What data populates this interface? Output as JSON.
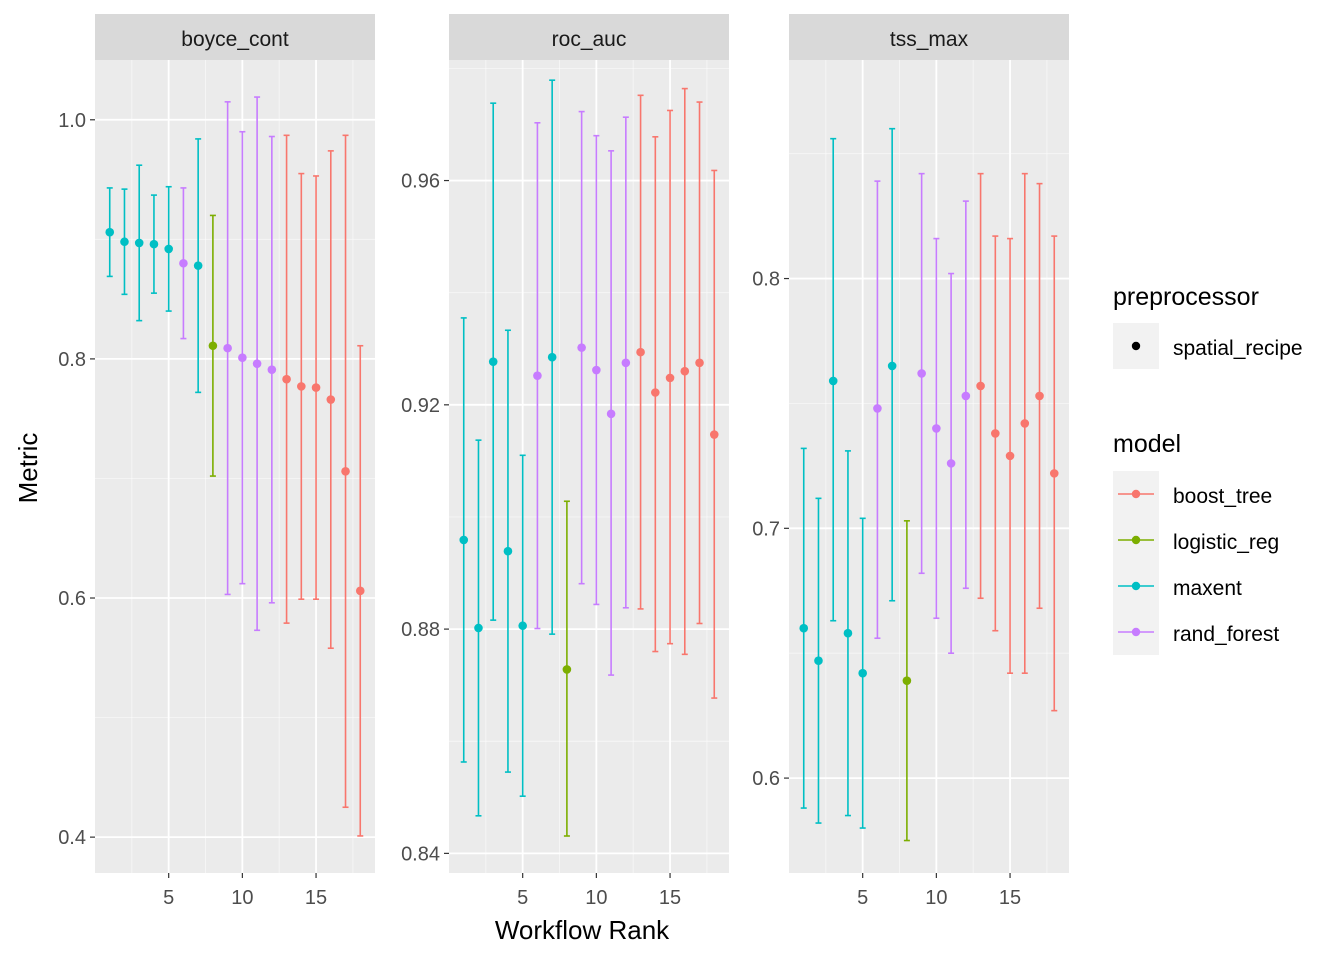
{
  "chart_data": {
    "type": "scatter",
    "subtype": "point-errorbar-faceted",
    "xlabel": "Workflow Rank",
    "ylabel": "Metric",
    "legend_position": "right",
    "grid": true,
    "legends": {
      "preprocessor": {
        "title": "preprocessor",
        "entries": [
          "spatial_recipe"
        ]
      },
      "model": {
        "title": "model",
        "entries": [
          {
            "name": "boost_tree",
            "color": "#F8766D"
          },
          {
            "name": "logistic_reg",
            "color": "#7CAE00"
          },
          {
            "name": "maxent",
            "color": "#00BFC4"
          },
          {
            "name": "rand_forest",
            "color": "#C77CFF"
          }
        ]
      }
    },
    "facets": [
      {
        "name": "boyce_cont",
        "xlim": [
          0,
          19
        ],
        "ylim": [
          0.37,
          1.05
        ],
        "xticks": [
          5,
          10,
          15
        ],
        "yticks": [
          0.4,
          0.6,
          0.8,
          1.0
        ],
        "ytick_labels": [
          "0.4",
          "0.6",
          "0.8",
          "1.0"
        ],
        "points": [
          {
            "rank": 1,
            "model": "maxent",
            "value": 0.906,
            "lower": 0.869,
            "upper": 0.943
          },
          {
            "rank": 2,
            "model": "maxent",
            "value": 0.898,
            "lower": 0.854,
            "upper": 0.942
          },
          {
            "rank": 3,
            "model": "maxent",
            "value": 0.897,
            "lower": 0.832,
            "upper": 0.962
          },
          {
            "rank": 4,
            "model": "maxent",
            "value": 0.896,
            "lower": 0.855,
            "upper": 0.937
          },
          {
            "rank": 5,
            "model": "maxent",
            "value": 0.892,
            "lower": 0.84,
            "upper": 0.944
          },
          {
            "rank": 6,
            "model": "rand_forest",
            "value": 0.88,
            "lower": 0.817,
            "upper": 0.943
          },
          {
            "rank": 7,
            "model": "maxent",
            "value": 0.878,
            "lower": 0.772,
            "upper": 0.984
          },
          {
            "rank": 8,
            "model": "logistic_reg",
            "value": 0.811,
            "lower": 0.702,
            "upper": 0.92
          },
          {
            "rank": 9,
            "model": "rand_forest",
            "value": 0.809,
            "lower": 0.603,
            "upper": 1.015
          },
          {
            "rank": 10,
            "model": "rand_forest",
            "value": 0.801,
            "lower": 0.612,
            "upper": 0.99
          },
          {
            "rank": 11,
            "model": "rand_forest",
            "value": 0.796,
            "lower": 0.573,
            "upper": 1.019
          },
          {
            "rank": 12,
            "model": "rand_forest",
            "value": 0.791,
            "lower": 0.596,
            "upper": 0.986
          },
          {
            "rank": 13,
            "model": "boost_tree",
            "value": 0.783,
            "lower": 0.579,
            "upper": 0.987
          },
          {
            "rank": 14,
            "model": "boost_tree",
            "value": 0.777,
            "lower": 0.599,
            "upper": 0.955
          },
          {
            "rank": 15,
            "model": "boost_tree",
            "value": 0.776,
            "lower": 0.599,
            "upper": 0.953
          },
          {
            "rank": 16,
            "model": "boost_tree",
            "value": 0.766,
            "lower": 0.558,
            "upper": 0.974
          },
          {
            "rank": 17,
            "model": "boost_tree",
            "value": 0.706,
            "lower": 0.425,
            "upper": 0.987
          },
          {
            "rank": 18,
            "model": "boost_tree",
            "value": 0.606,
            "lower": 0.401,
            "upper": 0.811
          }
        ]
      },
      {
        "name": "roc_auc",
        "xlim": [
          0,
          19
        ],
        "ylim": [
          0.8365,
          0.9815
        ],
        "xticks": [
          5,
          10,
          15
        ],
        "yticks": [
          0.84,
          0.88,
          0.92,
          0.96
        ],
        "ytick_labels": [
          "0.84",
          "0.88",
          "0.92",
          "0.96"
        ],
        "points": [
          {
            "rank": 1,
            "model": "maxent",
            "value": 0.8959,
            "lower": 0.8563,
            "upper": 0.9355
          },
          {
            "rank": 2,
            "model": "maxent",
            "value": 0.8802,
            "lower": 0.8467,
            "upper": 0.9137
          },
          {
            "rank": 3,
            "model": "maxent",
            "value": 0.9277,
            "lower": 0.8816,
            "upper": 0.9738
          },
          {
            "rank": 4,
            "model": "maxent",
            "value": 0.8939,
            "lower": 0.8545,
            "upper": 0.9333
          },
          {
            "rank": 5,
            "model": "maxent",
            "value": 0.8806,
            "lower": 0.8502,
            "upper": 0.911
          },
          {
            "rank": 6,
            "model": "rand_forest",
            "value": 0.9252,
            "lower": 0.8801,
            "upper": 0.9703
          },
          {
            "rank": 7,
            "model": "maxent",
            "value": 0.9285,
            "lower": 0.8791,
            "upper": 0.9779
          },
          {
            "rank": 8,
            "model": "logistic_reg",
            "value": 0.8728,
            "lower": 0.8431,
            "upper": 0.9028
          },
          {
            "rank": 9,
            "model": "rand_forest",
            "value": 0.9302,
            "lower": 0.8881,
            "upper": 0.9723
          },
          {
            "rank": 10,
            "model": "rand_forest",
            "value": 0.9262,
            "lower": 0.8844,
            "upper": 0.968
          },
          {
            "rank": 11,
            "model": "rand_forest",
            "value": 0.9184,
            "lower": 0.8718,
            "upper": 0.9653
          },
          {
            "rank": 12,
            "model": "rand_forest",
            "value": 0.9275,
            "lower": 0.8838,
            "upper": 0.9713
          },
          {
            "rank": 13,
            "model": "boost_tree",
            "value": 0.9294,
            "lower": 0.8836,
            "upper": 0.9752
          },
          {
            "rank": 14,
            "model": "boost_tree",
            "value": 0.9222,
            "lower": 0.876,
            "upper": 0.9678
          },
          {
            "rank": 15,
            "model": "boost_tree",
            "value": 0.9248,
            "lower": 0.8774,
            "upper": 0.9725
          },
          {
            "rank": 16,
            "model": "boost_tree",
            "value": 0.926,
            "lower": 0.8755,
            "upper": 0.9764
          },
          {
            "rank": 17,
            "model": "boost_tree",
            "value": 0.9275,
            "lower": 0.881,
            "upper": 0.974
          },
          {
            "rank": 18,
            "model": "boost_tree",
            "value": 0.9147,
            "lower": 0.8677,
            "upper": 0.9618
          }
        ]
      },
      {
        "name": "tss_max",
        "xlim": [
          0,
          19
        ],
        "ylim": [
          0.562,
          0.8875
        ],
        "xticks": [
          5,
          10,
          15
        ],
        "yticks": [
          0.6,
          0.7,
          0.8
        ],
        "ytick_labels": [
          "0.6",
          "0.7",
          "0.8"
        ],
        "points": [
          {
            "rank": 1,
            "model": "maxent",
            "value": 0.66,
            "lower": 0.588,
            "upper": 0.732
          },
          {
            "rank": 2,
            "model": "maxent",
            "value": 0.647,
            "lower": 0.582,
            "upper": 0.712
          },
          {
            "rank": 3,
            "model": "maxent",
            "value": 0.759,
            "lower": 0.663,
            "upper": 0.856
          },
          {
            "rank": 4,
            "model": "maxent",
            "value": 0.658,
            "lower": 0.585,
            "upper": 0.731
          },
          {
            "rank": 5,
            "model": "maxent",
            "value": 0.642,
            "lower": 0.58,
            "upper": 0.704
          },
          {
            "rank": 6,
            "model": "rand_forest",
            "value": 0.748,
            "lower": 0.656,
            "upper": 0.839
          },
          {
            "rank": 7,
            "model": "maxent",
            "value": 0.765,
            "lower": 0.671,
            "upper": 0.86
          },
          {
            "rank": 8,
            "model": "logistic_reg",
            "value": 0.639,
            "lower": 0.575,
            "upper": 0.703
          },
          {
            "rank": 9,
            "model": "rand_forest",
            "value": 0.762,
            "lower": 0.682,
            "upper": 0.842
          },
          {
            "rank": 10,
            "model": "rand_forest",
            "value": 0.74,
            "lower": 0.664,
            "upper": 0.816
          },
          {
            "rank": 11,
            "model": "rand_forest",
            "value": 0.726,
            "lower": 0.65,
            "upper": 0.802
          },
          {
            "rank": 12,
            "model": "rand_forest",
            "value": 0.753,
            "lower": 0.676,
            "upper": 0.831
          },
          {
            "rank": 13,
            "model": "boost_tree",
            "value": 0.757,
            "lower": 0.672,
            "upper": 0.842
          },
          {
            "rank": 14,
            "model": "boost_tree",
            "value": 0.738,
            "lower": 0.659,
            "upper": 0.817
          },
          {
            "rank": 15,
            "model": "boost_tree",
            "value": 0.729,
            "lower": 0.642,
            "upper": 0.816
          },
          {
            "rank": 16,
            "model": "boost_tree",
            "value": 0.742,
            "lower": 0.642,
            "upper": 0.842
          },
          {
            "rank": 17,
            "model": "boost_tree",
            "value": 0.753,
            "lower": 0.668,
            "upper": 0.838
          },
          {
            "rank": 18,
            "model": "boost_tree",
            "value": 0.722,
            "lower": 0.627,
            "upper": 0.817
          }
        ]
      }
    ]
  },
  "colors": {
    "panel_background": "#EBEBEB",
    "strip_background": "#D9D9D9",
    "grid_major": "#FFFFFF",
    "text_dark": "#1A1A1A",
    "tick_text": "#4D4D4D"
  }
}
